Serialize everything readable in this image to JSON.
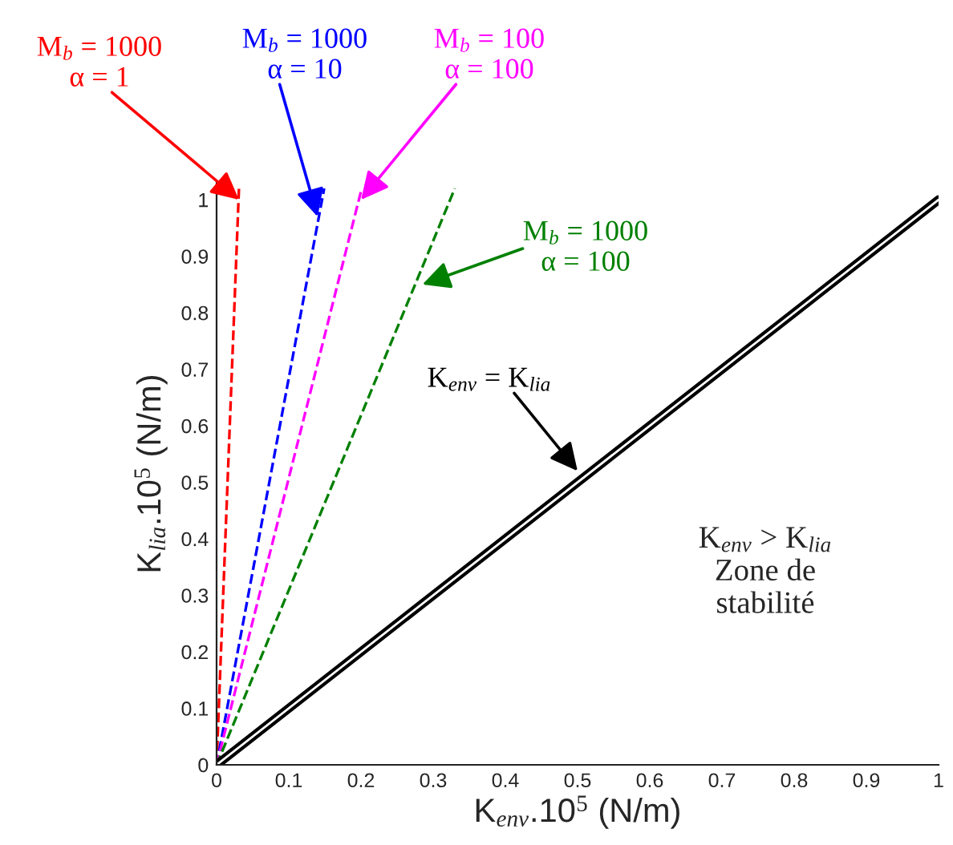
{
  "chart_data": {
    "type": "line",
    "xlabel": "K$_{env}$.10$^{5}$ (N/m)",
    "ylabel": "K$_{lia}$.10$^{5}$ (N/m)",
    "series": [
      {
        "color": "#ff0000",
        "x": [
          0,
          0.031
        ],
        "values": [
          0,
          1.02
        ],
        "line_style": "dashed"
      },
      {
        "color": "#0000ff",
        "x": [
          0,
          0.149
        ],
        "values": [
          0,
          1.02
        ],
        "line_style": "dashed"
      },
      {
        "color": "#ff00ff",
        "x": [
          0,
          0.201
        ],
        "values": [
          0,
          1.02
        ],
        "line_style": "dashed"
      },
      {
        "color": "#008000",
        "x": [
          0,
          0.33
        ],
        "values": [
          0,
          1.02
        ],
        "line_style": "dashed"
      },
      {
        "color": "#000000",
        "x": [
          0,
          1
        ],
        "values": [
          0,
          1
        ],
        "line_style": "solid"
      }
    ],
    "annotations": [
      {
        "text": "M$_{b}$ = 1000\nα = 1",
        "x": 0.031,
        "y": 1.0
      },
      {
        "text": "M$_{b}$ = 1000\nα = 10",
        "x": 0.14,
        "y": 0.97
      },
      {
        "text": "M$_{b}$ = 100\nα = 100",
        "x": 0.2,
        "y": 1.0
      },
      {
        "text": "M$_{b}$ = 1000\nα = 100",
        "x": 0.285,
        "y": 0.85
      },
      {
        "text": "K$_{env}$ = K$_{lia}$",
        "x": 0.5,
        "y": 0.52
      },
      "K$_{env}$ > K$_{lia}$\nZone de\nstabilité"
    ],
    "xlim": [
      0,
      1
    ],
    "ylim": [
      0,
      1.03
    ],
    "xticks": [
      0,
      0.1,
      0.2,
      0.3,
      0.4,
      0.5,
      0.6,
      0.7,
      0.8,
      0.9,
      1
    ],
    "yticks": [
      0,
      0.1,
      0.2,
      0.3,
      0.4,
      0.5,
      0.6,
      0.7,
      0.8,
      0.9,
      1
    ],
    "grid": false,
    "legend": false,
    "marker": "none"
  }
}
